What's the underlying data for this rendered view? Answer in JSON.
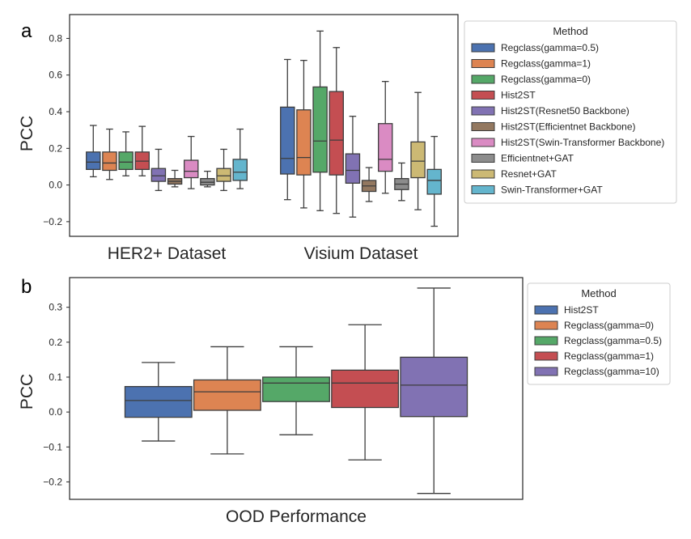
{
  "chart_data": [
    {
      "panel": "a",
      "type": "box",
      "ylabel": "PCC",
      "ylim": [
        -0.28,
        0.93
      ],
      "yticks": [
        -0.2,
        0.0,
        0.2,
        0.4,
        0.6,
        0.8
      ],
      "groups": [
        "HER2+ Dataset",
        "Visium Dataset"
      ],
      "legend": {
        "title": "Method",
        "placement": "outside-right"
      },
      "series": [
        {
          "name": "Regclass(gamma=0.5)",
          "color": "#4c72b0",
          "boxes": [
            {
              "whislo": 0.045,
              "q1": 0.085,
              "med": 0.125,
              "q3": 0.18,
              "whishi": 0.325
            },
            {
              "whislo": -0.08,
              "q1": 0.06,
              "med": 0.145,
              "q3": 0.425,
              "whishi": 0.685
            }
          ]
        },
        {
          "name": "Regclass(gamma=1)",
          "color": "#dd8452",
          "boxes": [
            {
              "whislo": 0.03,
              "q1": 0.08,
              "med": 0.12,
              "q3": 0.18,
              "whishi": 0.305
            },
            {
              "whislo": -0.125,
              "q1": 0.055,
              "med": 0.15,
              "q3": 0.41,
              "whishi": 0.68
            }
          ]
        },
        {
          "name": "Regclass(gamma=0)",
          "color": "#55a868",
          "boxes": [
            {
              "whislo": 0.05,
              "q1": 0.085,
              "med": 0.125,
              "q3": 0.18,
              "whishi": 0.29
            },
            {
              "whislo": -0.14,
              "q1": 0.07,
              "med": 0.24,
              "q3": 0.535,
              "whishi": 0.84
            }
          ]
        },
        {
          "name": "Hist2ST",
          "color": "#c44e52",
          "boxes": [
            {
              "whislo": 0.05,
              "q1": 0.085,
              "med": 0.13,
              "q3": 0.18,
              "whishi": 0.32
            },
            {
              "whislo": -0.155,
              "q1": 0.055,
              "med": 0.245,
              "q3": 0.51,
              "whishi": 0.75
            }
          ]
        },
        {
          "name": "Hist2ST(Resnet50 Backbone)",
          "color": "#8172b3",
          "boxes": [
            {
              "whislo": -0.03,
              "q1": 0.02,
              "med": 0.05,
              "q3": 0.09,
              "whishi": 0.195
            },
            {
              "whislo": -0.175,
              "q1": 0.01,
              "med": 0.08,
              "q3": 0.17,
              "whishi": 0.375
            }
          ]
        },
        {
          "name": "Hist2ST(Efficientnet Backbone)",
          "color": "#937860",
          "boxes": [
            {
              "whislo": -0.01,
              "q1": 0.005,
              "med": 0.02,
              "q3": 0.035,
              "whishi": 0.08
            },
            {
              "whislo": -0.09,
              "q1": -0.035,
              "med": -0.005,
              "q3": 0.025,
              "whishi": 0.095
            }
          ]
        },
        {
          "name": "Hist2ST(Swin-Transformer Backbone)",
          "color": "#da8bc3",
          "boxes": [
            {
              "whislo": -0.02,
              "q1": 0.04,
              "med": 0.075,
              "q3": 0.135,
              "whishi": 0.265
            },
            {
              "whislo": -0.045,
              "q1": 0.075,
              "med": 0.14,
              "q3": 0.335,
              "whishi": 0.565
            }
          ]
        },
        {
          "name": "Efficientnet+GAT",
          "color": "#8c8c8c",
          "boxes": [
            {
              "whislo": -0.01,
              "q1": 0.0,
              "med": 0.015,
              "q3": 0.035,
              "whishi": 0.075
            },
            {
              "whislo": -0.085,
              "q1": -0.025,
              "med": 0.005,
              "q3": 0.035,
              "whishi": 0.12
            }
          ]
        },
        {
          "name": "Resnet+GAT",
          "color": "#ccb974",
          "boxes": [
            {
              "whislo": -0.03,
              "q1": 0.02,
              "med": 0.05,
              "q3": 0.09,
              "whishi": 0.195
            },
            {
              "whislo": -0.135,
              "q1": 0.04,
              "med": 0.13,
              "q3": 0.235,
              "whishi": 0.505
            }
          ]
        },
        {
          "name": "Swin-Transformer+GAT",
          "color": "#64b5cd",
          "boxes": [
            {
              "whislo": -0.02,
              "q1": 0.025,
              "med": 0.07,
              "q3": 0.14,
              "whishi": 0.305
            },
            {
              "whislo": -0.225,
              "q1": -0.05,
              "med": 0.025,
              "q3": 0.085,
              "whishi": 0.265
            }
          ]
        }
      ]
    },
    {
      "panel": "b",
      "type": "box",
      "ylabel": "PCC",
      "ylim": [
        -0.25,
        0.385
      ],
      "yticks": [
        -0.2,
        -0.1,
        0.0,
        0.1,
        0.2,
        0.3
      ],
      "groups": [
        "OOD Performance"
      ],
      "legend": {
        "title": "Method",
        "placement": "outside-right"
      },
      "series": [
        {
          "name": "Hist2ST",
          "color": "#4c72b0",
          "boxes": [
            {
              "whislo": -0.083,
              "q1": -0.015,
              "med": 0.033,
              "q3": 0.073,
              "whishi": 0.142
            }
          ]
        },
        {
          "name": "Regclass(gamma=0)",
          "color": "#dd8452",
          "boxes": [
            {
              "whislo": -0.12,
              "q1": 0.005,
              "med": 0.058,
              "q3": 0.092,
              "whishi": 0.187
            }
          ]
        },
        {
          "name": "Regclass(gamma=0.5)",
          "color": "#55a868",
          "boxes": [
            {
              "whislo": -0.065,
              "q1": 0.03,
              "med": 0.083,
              "q3": 0.1,
              "whishi": 0.187
            }
          ]
        },
        {
          "name": "Regclass(gamma=1)",
          "color": "#c44e52",
          "boxes": [
            {
              "whislo": -0.137,
              "q1": 0.013,
              "med": 0.083,
              "q3": 0.12,
              "whishi": 0.25
            }
          ]
        },
        {
          "name": "Regclass(gamma=10)",
          "color": "#8172b3",
          "boxes": [
            {
              "whislo": -0.233,
              "q1": -0.013,
              "med": 0.077,
              "q3": 0.157,
              "whishi": 0.355
            }
          ]
        }
      ]
    }
  ]
}
